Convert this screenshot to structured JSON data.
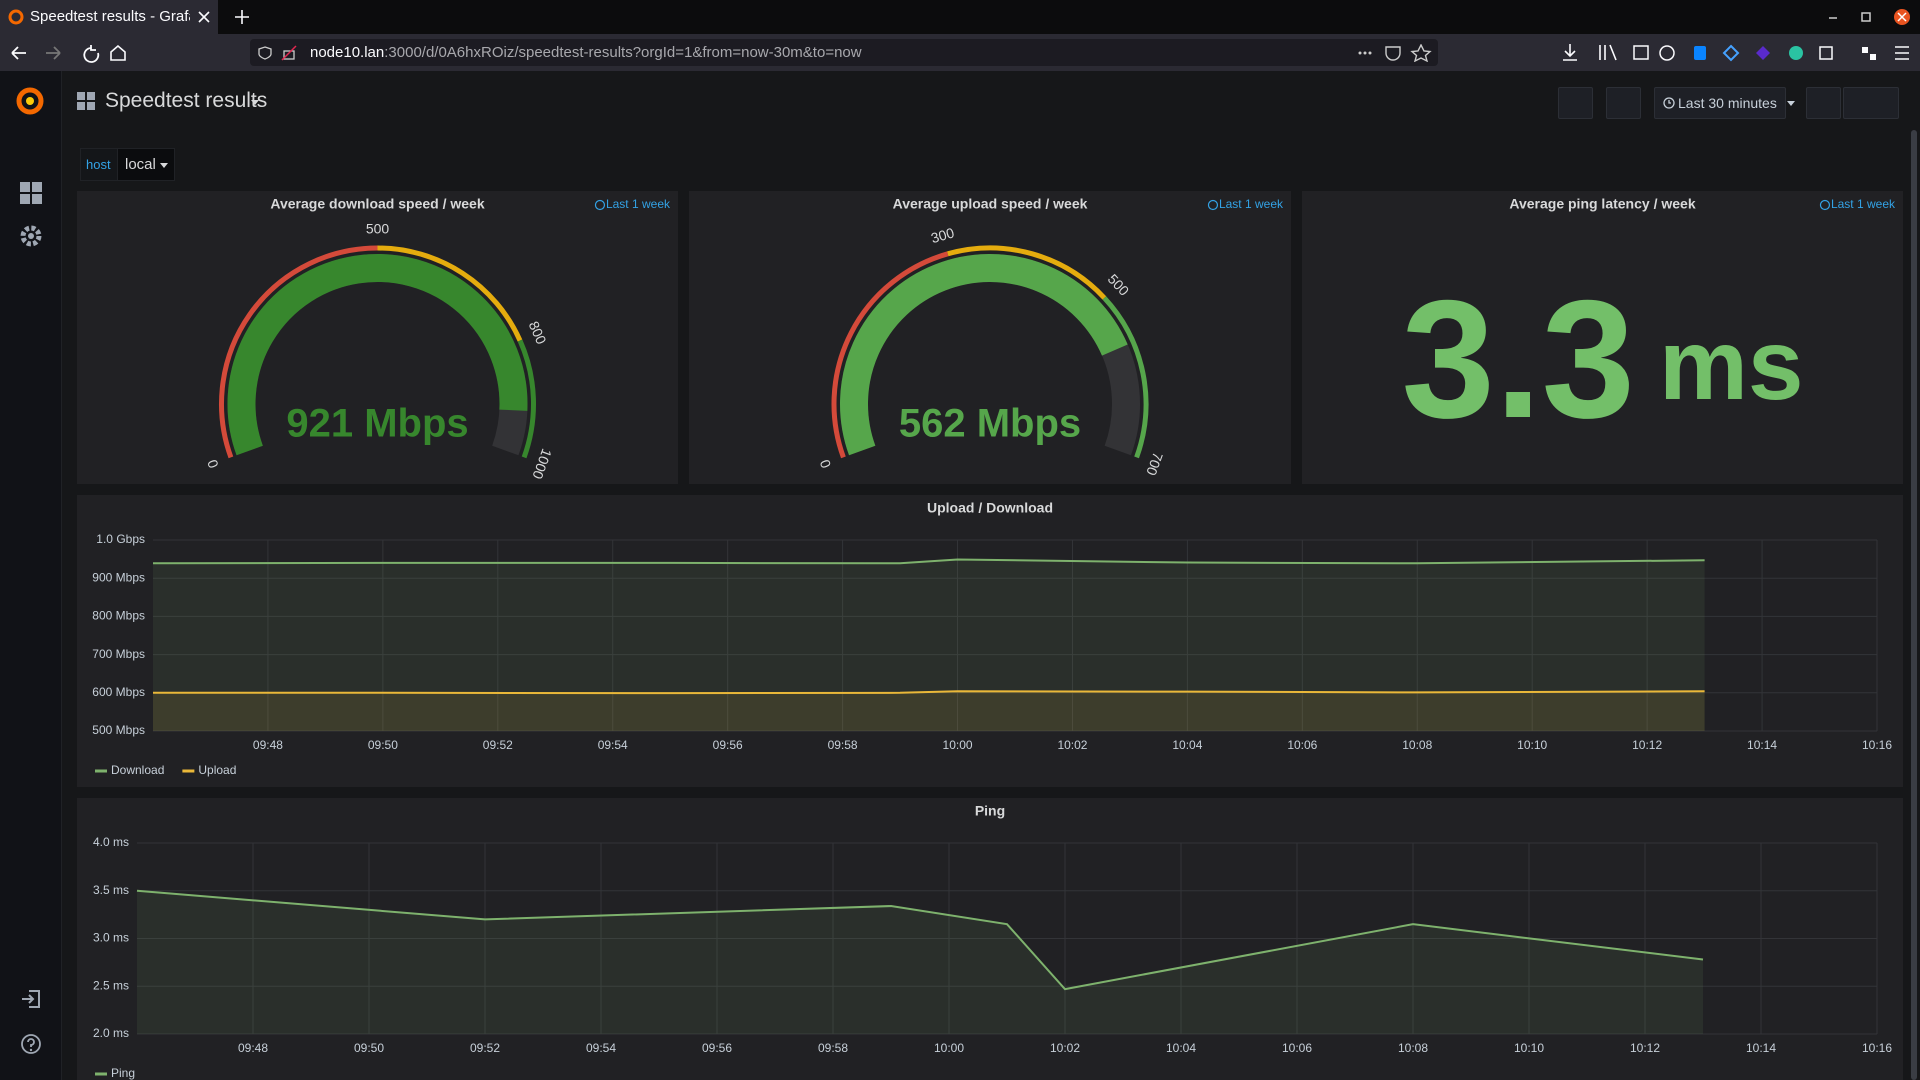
{
  "browser": {
    "tab_title": "Speedtest results - Grafa",
    "url_host": "node10.lan",
    "url_path": ":3000/d/0A6hxROiz/speedtest-results?orgId=1&from=now-30m&to=now"
  },
  "dashboard": {
    "title": "Speedtest results",
    "variable_label": "host",
    "variable_value": "local",
    "time_range": "Last 30 minutes"
  },
  "panels": [
    {
      "type": "gauge",
      "title": "Average download speed / week",
      "time_info": "Last 1 week",
      "value": 921,
      "value_label": "921 Mbps",
      "min": 0,
      "thresholds": [
        500,
        800
      ],
      "max": 1000,
      "colors": [
        "#d44a3a",
        "#e5ac0e",
        "#37872d"
      ]
    },
    {
      "type": "gauge",
      "title": "Average upload speed / week",
      "time_info": "Last 1 week",
      "value": 562,
      "value_label": "562 Mbps",
      "min": 0,
      "thresholds": [
        300,
        500
      ],
      "max": 700,
      "colors": [
        "#d44a3a",
        "#e5ac0e",
        "#56a64b"
      ]
    },
    {
      "type": "stat",
      "title": "Average ping latency / week",
      "time_info": "Last 1 week",
      "value": 3.3,
      "unit": "ms",
      "color": "#73bf69"
    },
    {
      "type": "graph",
      "title": "Upload / Download",
      "x": [
        "09:46",
        "09:50",
        "09:55",
        "09:59",
        "10:00",
        "10:04",
        "10:08",
        "10:13"
      ],
      "series": [
        {
          "name": "Download",
          "color": "#7eb26d",
          "values": [
            939,
            940,
            940,
            939,
            949,
            941,
            939,
            947
          ]
        },
        {
          "name": "Upload",
          "color": "#eab839",
          "values": [
            600,
            600,
            599,
            600,
            604,
            603,
            601,
            604
          ]
        }
      ],
      "xlim": [
        "09:46",
        "10:16"
      ],
      "xticks": [
        "09:48",
        "09:50",
        "09:52",
        "09:54",
        "09:56",
        "09:58",
        "10:00",
        "10:02",
        "10:04",
        "10:06",
        "10:08",
        "10:10",
        "10:12",
        "10:14",
        "10:16"
      ],
      "ylim": [
        500,
        1000
      ],
      "yticks": [
        {
          "value": 500,
          "label": "500 Mbps"
        },
        {
          "value": 600,
          "label": "600 Mbps"
        },
        {
          "value": 700,
          "label": "700 Mbps"
        },
        {
          "value": 800,
          "label": "800 Mbps"
        },
        {
          "value": 900,
          "label": "900 Mbps"
        },
        {
          "value": 1000,
          "label": "1.0 Gbps"
        }
      ]
    },
    {
      "type": "graph",
      "title": "Ping",
      "x": [
        "09:46",
        "09:52",
        "09:59",
        "10:01",
        "10:02",
        "10:08",
        "10:13"
      ],
      "series": [
        {
          "name": "Ping",
          "color": "#7eb26d",
          "values": [
            3.5,
            3.2,
            3.34,
            3.15,
            2.47,
            3.15,
            2.78
          ]
        }
      ],
      "xlim": [
        "09:46",
        "10:16"
      ],
      "xticks": [
        "09:48",
        "09:50",
        "09:52",
        "09:54",
        "09:56",
        "09:58",
        "10:00",
        "10:02",
        "10:04",
        "10:06",
        "10:08",
        "10:10",
        "10:12",
        "10:14",
        "10:16"
      ],
      "ylim": [
        2,
        4
      ],
      "yticks": [
        {
          "value": 2,
          "label": "2.0 ms"
        },
        {
          "value": 2.5,
          "label": "2.5 ms"
        },
        {
          "value": 3,
          "label": "3.0 ms"
        },
        {
          "value": 3.5,
          "label": "3.5 ms"
        },
        {
          "value": 4,
          "label": "4.0 ms"
        }
      ]
    }
  ]
}
